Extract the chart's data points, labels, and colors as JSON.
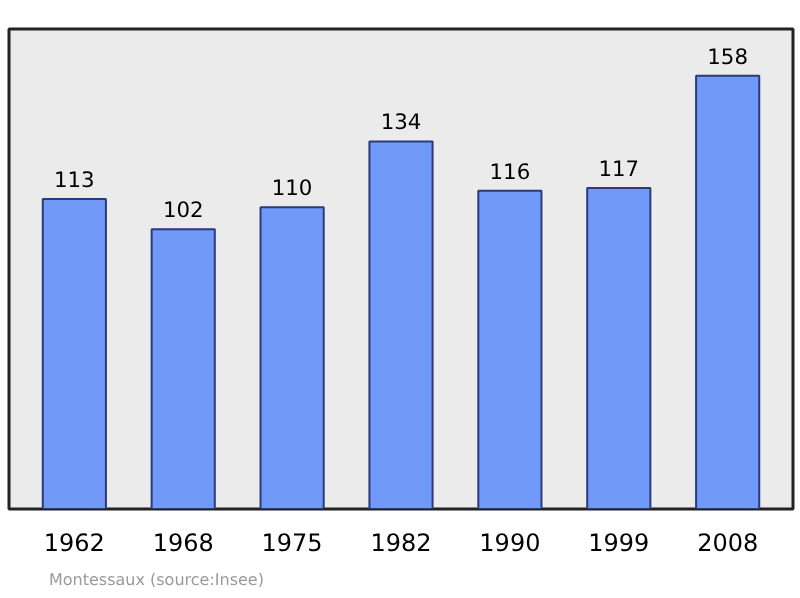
{
  "chart_data": {
    "type": "bar",
    "categories": [
      "1962",
      "1968",
      "1975",
      "1982",
      "1990",
      "1999",
      "2008"
    ],
    "values": [
      113,
      102,
      110,
      134,
      116,
      117,
      158
    ],
    "color": "#7099f8",
    "ylim": [
      0,
      175
    ],
    "data_labels": true,
    "grid": false,
    "annotations": [
      "Montessaux    (source:Insee)"
    ]
  }
}
